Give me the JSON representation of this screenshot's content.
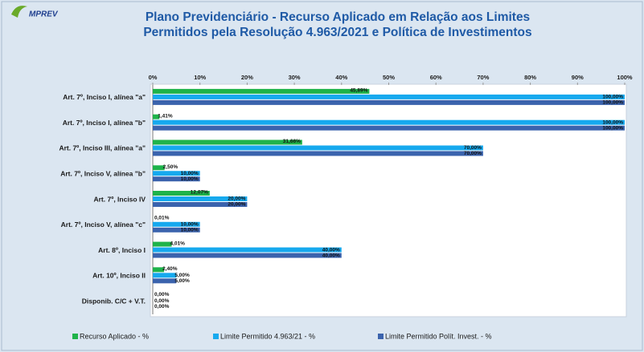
{
  "chart_data": {
    "type": "hbar",
    "logo": "MPREV",
    "title": [
      "Plano Previdenciário - Recurso Aplicado em Relação aos Limites",
      "Permitidos pela Resolução 4.963/2021 e Política de Investimentos"
    ],
    "categories": [
      "Art. 7º, Inciso I, alínea \"a\"",
      "Art. 7º, Inciso I, alínea \"b\"",
      "Art. 7º, Inciso III, alínea \"a\"",
      "Art. 7º, Inciso V, alínea \"b\"",
      "Art. 7º, Inciso IV",
      "Art. 7º, Inciso V, alínea \"c\"",
      "Art. 8º, Inciso I",
      "Art. 10º, Inciso II",
      "Disponib. C/C + V.T."
    ],
    "series": [
      {
        "name": "Recurso Aplicado - %",
        "color": "#1fb34a",
        "values": [
          45.89,
          1.41,
          31.66,
          2.5,
          12.07,
          0.01,
          4.01,
          2.4,
          0.0
        ],
        "value_labels": [
          "45,89%",
          "1,41%",
          "31,66%",
          "2,50%",
          "12,07%",
          "0,01%",
          "4,01%",
          "2,40%",
          "0,00%"
        ]
      },
      {
        "name": "Limite Permitido 4.963/21 - %",
        "color": "#16a9ee",
        "values": [
          100,
          100,
          70,
          10,
          20,
          10,
          40,
          5,
          0
        ],
        "value_labels": [
          "100,00%",
          "100,00%",
          "70,00%",
          "10,00%",
          "20,00%",
          "10,00%",
          "40,00%",
          "5,00%",
          "0,00%"
        ]
      },
      {
        "name": "Limite Permitido Polít. Invest. - %",
        "color": "#3b63ad",
        "values": [
          100,
          100,
          70,
          10,
          20,
          10,
          40,
          5,
          0
        ],
        "value_labels": [
          "100,00%",
          "100,00%",
          "70,00%",
          "10,00%",
          "20,00%",
          "10,00%",
          "40,00%",
          "5,00%",
          "0,00%"
        ]
      }
    ],
    "xlim": [
      0,
      100
    ],
    "xticks": [
      {
        "value": 0,
        "label": "0%"
      },
      {
        "value": 10,
        "label": "10%"
      },
      {
        "value": 20,
        "label": "20%"
      },
      {
        "value": 30,
        "label": "30%"
      },
      {
        "value": 40,
        "label": "40%"
      },
      {
        "value": 50,
        "label": "50%"
      },
      {
        "value": 60,
        "label": "60%"
      },
      {
        "value": 70,
        "label": "70%"
      },
      {
        "value": 80,
        "label": "80%"
      },
      {
        "value": 90,
        "label": "90%"
      },
      {
        "value": 100,
        "label": "100%"
      }
    ],
    "legend": "bottom"
  }
}
